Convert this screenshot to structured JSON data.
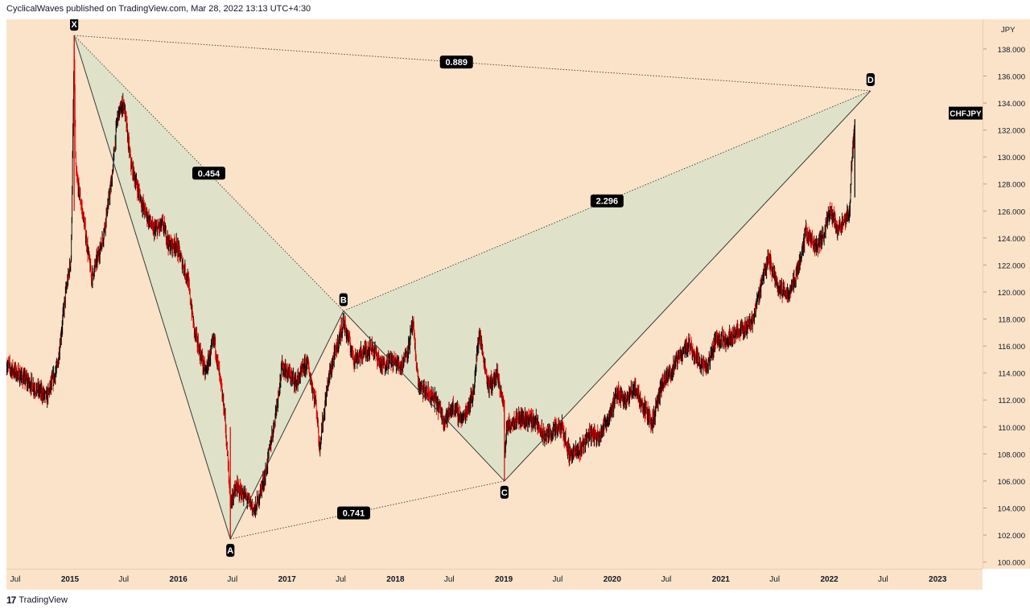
{
  "header": {
    "text": "CyclicalWaves published on TradingView.com, Mar 28, 2022 13:13 UTC+4:30"
  },
  "footer": {
    "brand": "TradingView",
    "logo_glyph": "17"
  },
  "symbol": {
    "ticker": "CHFJPY",
    "currency": "JPY"
  },
  "colors": {
    "background": "#fbe3c9",
    "pattern_fill": "#dfe2c8",
    "bull_candle": "#000000",
    "bear_candle": "#e00000",
    "pattern_line": "#3a3a3a",
    "label_bg": "#000000",
    "label_text": "#ffffff"
  },
  "chart_data": {
    "type": "candlestick",
    "title": "",
    "xlabel": "",
    "ylabel": "",
    "ylim": [
      99.5,
      140.2
    ],
    "x_range": [
      "2014-06-01",
      "2023-06-01"
    ],
    "y_ticks": [
      "100.000",
      "102.000",
      "104.000",
      "106.000",
      "108.000",
      "110.000",
      "112.000",
      "114.000",
      "116.000",
      "118.000",
      "120.000",
      "122.000",
      "124.000",
      "126.000",
      "128.000",
      "130.000",
      "132.000",
      "134.000",
      "136.000",
      "138.000"
    ],
    "x_tick_labels": [
      {
        "label": "Jul",
        "date": "2014-07-01"
      },
      {
        "label": "2015",
        "date": "2015-01-01"
      },
      {
        "label": "Jul",
        "date": "2015-07-01"
      },
      {
        "label": "2016",
        "date": "2016-01-01"
      },
      {
        "label": "Jul",
        "date": "2016-07-01"
      },
      {
        "label": "2017",
        "date": "2017-01-01"
      },
      {
        "label": "Jul",
        "date": "2017-07-01"
      },
      {
        "label": "2018",
        "date": "2018-01-01"
      },
      {
        "label": "Jul",
        "date": "2018-07-01"
      },
      {
        "label": "2019",
        "date": "2019-01-01"
      },
      {
        "label": "Jul",
        "date": "2019-07-01"
      },
      {
        "label": "2020",
        "date": "2020-01-01"
      },
      {
        "label": "Jul",
        "date": "2020-07-01"
      },
      {
        "label": "2021",
        "date": "2021-01-01"
      },
      {
        "label": "Jul",
        "date": "2021-07-01"
      },
      {
        "label": "2022",
        "date": "2022-01-01"
      },
      {
        "label": "Jul",
        "date": "2022-07-01"
      },
      {
        "label": "2023",
        "date": "2023-01-01"
      }
    ],
    "price_path": [
      [
        "2014-06-01",
        114.6
      ],
      [
        "2014-09-01",
        113.0
      ],
      [
        "2014-10-15",
        112.2
      ],
      [
        "2014-11-20",
        114.5
      ],
      [
        "2014-12-15",
        119.5
      ],
      [
        "2015-01-05",
        122.6
      ],
      [
        "2015-01-15",
        138.5
      ],
      [
        "2015-01-20",
        129.0
      ],
      [
        "2015-02-15",
        125.5
      ],
      [
        "2015-03-15",
        121.0
      ],
      [
        "2015-04-20",
        123.8
      ],
      [
        "2015-05-20",
        128.0
      ],
      [
        "2015-06-10",
        133.0
      ],
      [
        "2015-07-01",
        134.0
      ],
      [
        "2015-07-25",
        129.5
      ],
      [
        "2015-09-01",
        126.5
      ],
      [
        "2015-10-10",
        124.5
      ],
      [
        "2015-11-10",
        125.0
      ],
      [
        "2015-12-01",
        123.5
      ],
      [
        "2015-12-25",
        123.5
      ],
      [
        "2016-02-01",
        121.0
      ],
      [
        "2016-02-25",
        117.0
      ],
      [
        "2016-04-01",
        114.0
      ],
      [
        "2016-05-01",
        116.5
      ],
      [
        "2016-06-05",
        111.0
      ],
      [
        "2016-06-24",
        104.5
      ],
      [
        "2016-07-15",
        105.5
      ],
      [
        "2016-08-15",
        104.8
      ],
      [
        "2016-09-15",
        103.8
      ],
      [
        "2016-10-20",
        106.5
      ],
      [
        "2016-11-20",
        110.5
      ],
      [
        "2016-12-15",
        114.5
      ],
      [
        "2017-02-01",
        113.3
      ],
      [
        "2017-03-10",
        114.8
      ],
      [
        "2017-04-10",
        111.5
      ],
      [
        "2017-04-20",
        108.5
      ],
      [
        "2017-05-20",
        113.5
      ],
      [
        "2017-07-10",
        117.8
      ],
      [
        "2017-08-15",
        115.0
      ],
      [
        "2017-09-15",
        115.5
      ],
      [
        "2017-10-15",
        116.0
      ],
      [
        "2017-11-15",
        114.5
      ],
      [
        "2017-12-15",
        115.0
      ],
      [
        "2018-01-20",
        114.5
      ],
      [
        "2018-02-15",
        116.0
      ],
      [
        "2018-02-28",
        117.7
      ],
      [
        "2018-03-20",
        113.0
      ],
      [
        "2018-05-15",
        112.0
      ],
      [
        "2018-06-15",
        110.5
      ],
      [
        "2018-07-15",
        111.5
      ],
      [
        "2018-08-15",
        110.5
      ],
      [
        "2018-09-20",
        112.5
      ],
      [
        "2018-10-10",
        117.0
      ],
      [
        "2018-11-10",
        113.0
      ],
      [
        "2018-12-10",
        113.8
      ],
      [
        "2019-01-02",
        111.5
      ],
      [
        "2019-01-03",
        107.5
      ],
      [
        "2019-01-10",
        110.0
      ],
      [
        "2019-02-15",
        110.7
      ],
      [
        "2019-04-15",
        110.5
      ],
      [
        "2019-05-15",
        109.3
      ],
      [
        "2019-07-15",
        110.0
      ],
      [
        "2019-08-10",
        108.0
      ],
      [
        "2019-09-10",
        108.2
      ],
      [
        "2019-10-15",
        109.5
      ],
      [
        "2019-11-15",
        109.3
      ],
      [
        "2019-12-15",
        110.5
      ],
      [
        "2020-01-20",
        112.5
      ],
      [
        "2020-02-20",
        112.0
      ],
      [
        "2020-03-15",
        113.0
      ],
      [
        "2020-04-15",
        111.5
      ],
      [
        "2020-05-15",
        110.3
      ],
      [
        "2020-06-15",
        113.0
      ],
      [
        "2020-07-15",
        114.0
      ],
      [
        "2020-08-15",
        115.3
      ],
      [
        "2020-09-15",
        116.2
      ],
      [
        "2020-10-15",
        115.0
      ],
      [
        "2020-11-15",
        114.3
      ],
      [
        "2020-12-15",
        116.5
      ],
      [
        "2021-01-20",
        116.5
      ],
      [
        "2021-02-20",
        117.0
      ],
      [
        "2021-03-20",
        117.2
      ],
      [
        "2021-04-20",
        118.0
      ],
      [
        "2021-05-20",
        121.0
      ],
      [
        "2021-06-10",
        122.5
      ],
      [
        "2021-07-15",
        120.3
      ],
      [
        "2021-08-15",
        119.8
      ],
      [
        "2021-09-15",
        121.5
      ],
      [
        "2021-10-15",
        124.5
      ],
      [
        "2021-11-15",
        123.3
      ],
      [
        "2021-12-10",
        124.0
      ],
      [
        "2022-01-05",
        126.3
      ],
      [
        "2022-01-25",
        124.7
      ],
      [
        "2022-02-20",
        125.0
      ],
      [
        "2022-03-10",
        126.0
      ],
      [
        "2022-03-20",
        130.5
      ],
      [
        "2022-03-28",
        132.3
      ]
    ],
    "harmonic_pattern": {
      "points": [
        {
          "name": "X",
          "date": "2015-01-15",
          "price": 139.0,
          "label_pos": "above"
        },
        {
          "name": "A",
          "date": "2016-06-24",
          "price": 101.7,
          "label_pos": "below"
        },
        {
          "name": "B",
          "date": "2017-07-10",
          "price": 118.6,
          "label_pos": "above"
        },
        {
          "name": "C",
          "date": "2019-01-03",
          "price": 106.0,
          "label_pos": "below"
        },
        {
          "name": "D",
          "date": "2022-05-20",
          "price": 134.9,
          "label_pos": "above"
        }
      ],
      "ratios": [
        {
          "value": "0.454",
          "from": "X",
          "to": "B",
          "at": 0.5
        },
        {
          "value": "0.741",
          "from": "A",
          "to": "C",
          "at": 0.45
        },
        {
          "value": "2.296",
          "from": "B",
          "to": "D",
          "at": 0.5
        },
        {
          "value": "0.889",
          "from": "X",
          "to": "D",
          "at": 0.48
        }
      ]
    }
  }
}
